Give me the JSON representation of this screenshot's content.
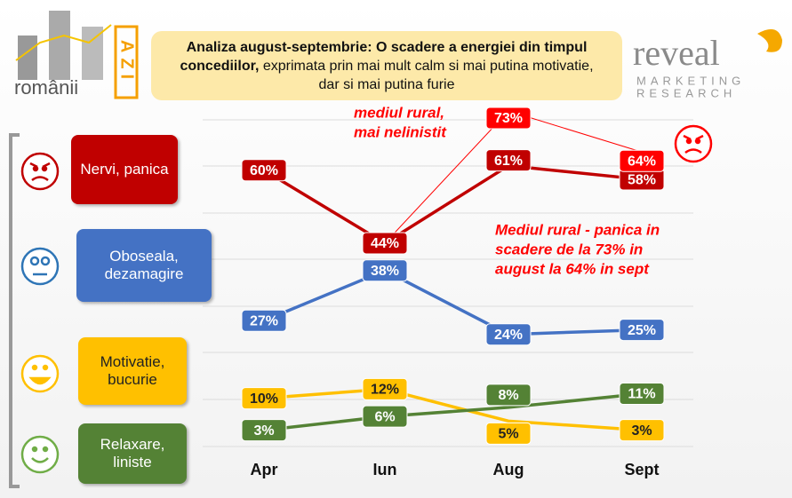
{
  "header": {
    "title_bold": "Analiza august-septembrie: O scadere a energiei din timpul concediilor,",
    "title_rest": "exprimata prin mai mult calm si mai putina motivatie, dar si mai putina furie"
  },
  "logo_left": {
    "word": "românii",
    "tag": "AZI"
  },
  "logo_right": {
    "word": "reveal",
    "line1": "MARKETING",
    "line2": "RESEARCH"
  },
  "chart_data": {
    "type": "line",
    "categories": [
      "Apr",
      "Iun",
      "Aug",
      "Sept"
    ],
    "series": [
      {
        "name": "Nervi, panica",
        "color": "#c00000",
        "values": [
          60,
          44,
          61,
          58
        ],
        "value_labels": [
          "60%",
          "44%",
          "61%",
          "58%"
        ]
      },
      {
        "name": "Oboseala, dezamagire",
        "color": "#4472c4",
        "values": [
          27,
          38,
          24,
          25
        ],
        "value_labels": [
          "27%",
          "38%",
          "24%",
          "25%"
        ]
      },
      {
        "name": "Motivatie, bucurie",
        "color": "#ffc000",
        "values": [
          10,
          12,
          5,
          3
        ],
        "value_labels": [
          "10%",
          "12%",
          "5%",
          "3%"
        ]
      },
      {
        "name": "Relaxare, liniste",
        "color": "#548235",
        "values": [
          3,
          6,
          8,
          11
        ],
        "value_labels": [
          "3%",
          "6%",
          "8%",
          "11%"
        ]
      },
      {
        "color": "#ff0000",
        "values": [
          null,
          44,
          73,
          64
        ],
        "value_labels": [
          null,
          null,
          "73%",
          "64%"
        ]
      }
    ],
    "annotations": [
      {
        "lines": [
          "mediul rural,",
          "mai nelinistit"
        ]
      },
      {
        "lines": [
          "Mediul rural - panica in",
          "scadere de la 73% in",
          "august la 64% in sept"
        ]
      }
    ]
  }
}
